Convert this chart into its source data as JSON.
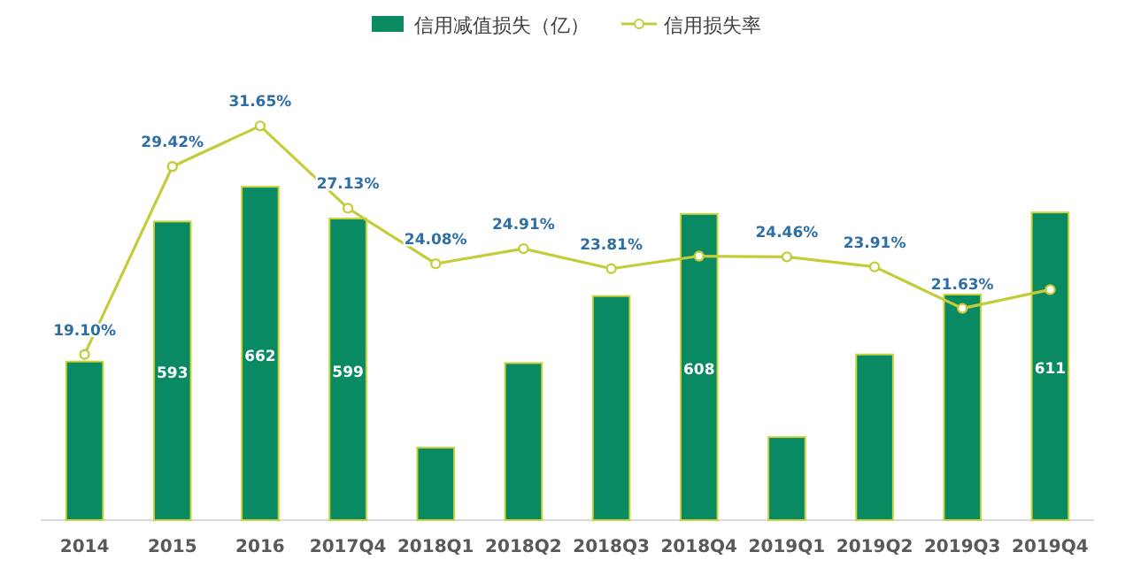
{
  "chart_data": {
    "type": "bar",
    "legend": "top",
    "marker": "circle",
    "tick_labels": "x",
    "categories": [
      "2014",
      "2015",
      "2016",
      "2017Q4",
      "2018Q1",
      "2018Q2",
      "2018Q3",
      "2018Q4",
      "2019Q1",
      "2019Q2",
      "2019Q3",
      "2019Q4"
    ],
    "series": [
      {
        "name": "信用减值损失（亿）",
        "color": "#0a8a63",
        "values": [
          315,
          593,
          662,
          599,
          144,
          312,
          445,
          608,
          165,
          329,
          448,
          611
        ],
        "value_labels": [
          null,
          "593",
          "662",
          "599",
          null,
          null,
          null,
          "608",
          null,
          null,
          null,
          "611"
        ]
      },
      {
        "name": "信用损失率",
        "type": "line",
        "axis": "y2",
        "color": "#c5cc3b",
        "values": [
          19.1,
          29.42,
          31.65,
          27.13,
          24.08,
          24.91,
          23.81,
          24.5,
          24.46,
          23.91,
          21.63,
          22.66
        ],
        "value_labels": [
          "19.10%",
          "29.42%",
          "31.65%",
          "27.13%",
          "24.08%",
          "24.91%",
          "23.81%",
          null,
          "24.46%",
          "23.91%",
          "21.63%",
          null
        ]
      }
    ]
  }
}
